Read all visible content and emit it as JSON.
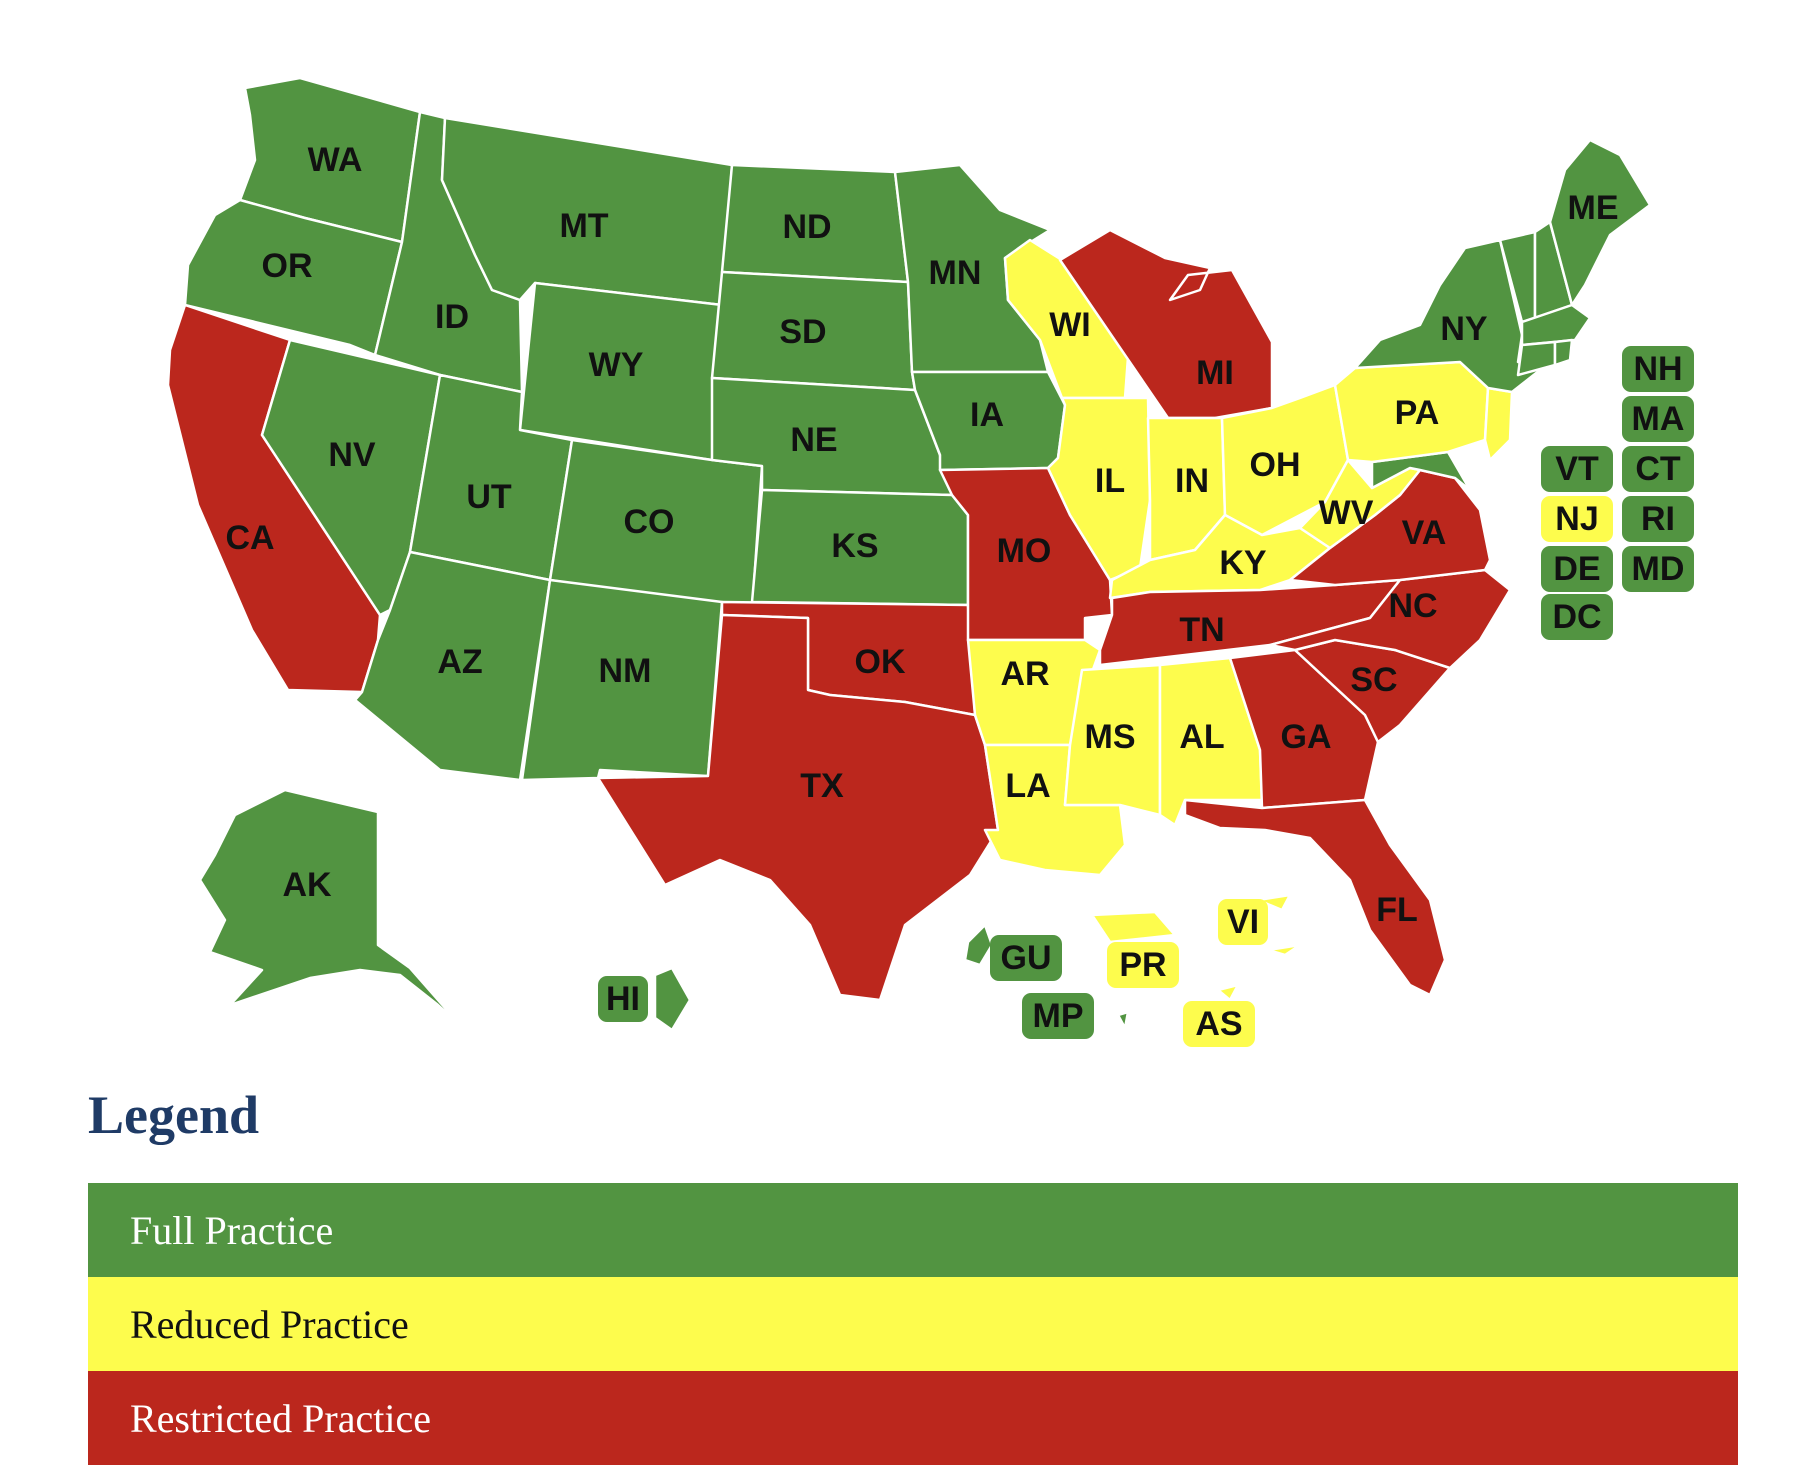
{
  "colors": {
    "full": "#529441",
    "reduced": "#fdfc4d",
    "restricted": "#bb271d"
  },
  "states": [
    {
      "abbr": "WA",
      "status": "full"
    },
    {
      "abbr": "OR",
      "status": "full"
    },
    {
      "abbr": "CA",
      "status": "restricted"
    },
    {
      "abbr": "ID",
      "status": "full"
    },
    {
      "abbr": "NV",
      "status": "full"
    },
    {
      "abbr": "MT",
      "status": "full"
    },
    {
      "abbr": "WY",
      "status": "full"
    },
    {
      "abbr": "UT",
      "status": "full"
    },
    {
      "abbr": "AZ",
      "status": "full"
    },
    {
      "abbr": "CO",
      "status": "full"
    },
    {
      "abbr": "NM",
      "status": "full"
    },
    {
      "abbr": "ND",
      "status": "full"
    },
    {
      "abbr": "SD",
      "status": "full"
    },
    {
      "abbr": "NE",
      "status": "full"
    },
    {
      "abbr": "KS",
      "status": "full"
    },
    {
      "abbr": "OK",
      "status": "restricted"
    },
    {
      "abbr": "TX",
      "status": "restricted"
    },
    {
      "abbr": "MN",
      "status": "full"
    },
    {
      "abbr": "IA",
      "status": "full"
    },
    {
      "abbr": "MO",
      "status": "restricted"
    },
    {
      "abbr": "AR",
      "status": "reduced"
    },
    {
      "abbr": "LA",
      "status": "reduced"
    },
    {
      "abbr": "WI",
      "status": "reduced"
    },
    {
      "abbr": "IL",
      "status": "reduced"
    },
    {
      "abbr": "MI",
      "status": "restricted"
    },
    {
      "abbr": "IN",
      "status": "reduced"
    },
    {
      "abbr": "OH",
      "status": "reduced"
    },
    {
      "abbr": "KY",
      "status": "reduced"
    },
    {
      "abbr": "TN",
      "status": "restricted"
    },
    {
      "abbr": "MS",
      "status": "reduced"
    },
    {
      "abbr": "AL",
      "status": "reduced"
    },
    {
      "abbr": "GA",
      "status": "restricted"
    },
    {
      "abbr": "FL",
      "status": "restricted"
    },
    {
      "abbr": "SC",
      "status": "restricted"
    },
    {
      "abbr": "NC",
      "status": "restricted"
    },
    {
      "abbr": "VA",
      "status": "restricted"
    },
    {
      "abbr": "WV",
      "status": "reduced"
    },
    {
      "abbr": "PA",
      "status": "reduced"
    },
    {
      "abbr": "NY",
      "status": "full"
    },
    {
      "abbr": "ME",
      "status": "full"
    },
    {
      "abbr": "AK",
      "status": "full"
    }
  ],
  "badges": [
    {
      "abbr": "NH",
      "status": "full"
    },
    {
      "abbr": "MA",
      "status": "full"
    },
    {
      "abbr": "VT",
      "status": "full"
    },
    {
      "abbr": "CT",
      "status": "full"
    },
    {
      "abbr": "NJ",
      "status": "reduced"
    },
    {
      "abbr": "RI",
      "status": "full"
    },
    {
      "abbr": "DE",
      "status": "full"
    },
    {
      "abbr": "MD",
      "status": "full"
    },
    {
      "abbr": "DC",
      "status": "full"
    },
    {
      "abbr": "HI",
      "status": "full"
    },
    {
      "abbr": "GU",
      "status": "full"
    },
    {
      "abbr": "MP",
      "status": "full"
    },
    {
      "abbr": "PR",
      "status": "reduced"
    },
    {
      "abbr": "VI",
      "status": "reduced"
    },
    {
      "abbr": "AS",
      "status": "reduced"
    }
  ],
  "legend": {
    "title": "Legend",
    "items": [
      {
        "label": "Full Practice",
        "status": "full"
      },
      {
        "label": "Reduced Practice",
        "status": "reduced"
      },
      {
        "label": "Restricted Practice",
        "status": "restricted"
      }
    ]
  }
}
